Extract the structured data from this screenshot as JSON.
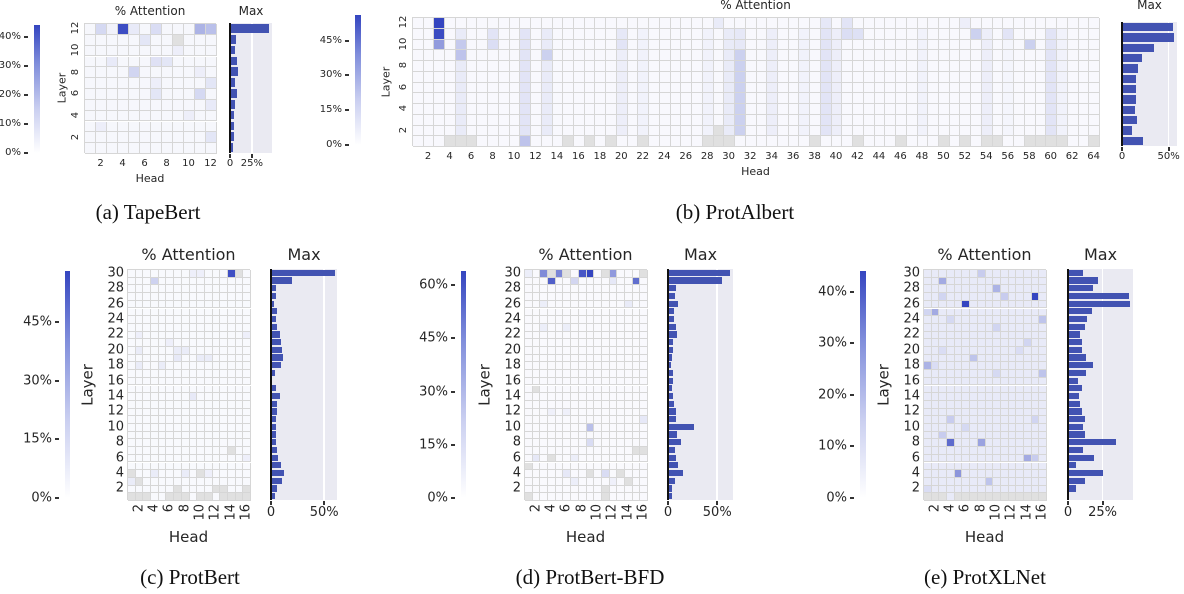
{
  "colors": {
    "heat_max": "#3445c0",
    "bar": "#4253b2",
    "nan": "#e0e0e0",
    "panel_bg": "#eaeaf2"
  },
  "chart_data": [
    {
      "type": "heatmap",
      "caption": "(a) TapeBert",
      "title": "% Attention",
      "xlabel": "Head",
      "ylabel": "Layer",
      "heads": 12,
      "layers": 12,
      "x_ticks": [
        2,
        4,
        6,
        8,
        10,
        12
      ],
      "y_ticks": [
        2,
        4,
        6,
        8,
        10,
        12
      ],
      "colorbar": {
        "vmax": 44,
        "ticks": [
          0,
          10,
          20,
          30,
          40
        ],
        "tick_labels": [
          "0%",
          "10%",
          "20%",
          "30%",
          "40%"
        ]
      },
      "baseline": 2,
      "bands": [],
      "cells": [
        [
          12,
          4,
          42
        ],
        [
          12,
          2,
          9
        ],
        [
          12,
          3,
          3
        ],
        [
          12,
          5,
          5
        ],
        [
          12,
          7,
          8
        ],
        [
          12,
          11,
          18
        ],
        [
          12,
          12,
          15
        ],
        [
          11,
          6,
          6
        ],
        [
          10,
          9,
          4
        ],
        [
          9,
          3,
          5
        ],
        [
          9,
          7,
          7
        ],
        [
          9,
          8,
          6
        ],
        [
          8,
          5,
          10
        ],
        [
          8,
          11,
          4
        ],
        [
          7,
          12,
          6
        ],
        [
          7,
          7,
          4
        ],
        [
          6,
          7,
          6
        ],
        [
          6,
          11,
          9
        ],
        [
          5,
          12,
          5
        ],
        [
          4,
          10,
          4
        ],
        [
          3,
          2,
          4
        ],
        [
          2,
          12,
          6
        ]
      ],
      "nan_cells": [
        [
          11,
          9
        ]
      ],
      "max_panel": {
        "title": "Max",
        "values": [
          3,
          5,
          4,
          4,
          6,
          8,
          6,
          9,
          8,
          6,
          7,
          45
        ],
        "xlim": [
          0,
          48
        ],
        "x_ticks": [
          0,
          25
        ],
        "x_tick_labels": [
          "0",
          "25%"
        ]
      }
    },
    {
      "type": "heatmap",
      "caption": "(b) ProtAlbert",
      "title": "% Attention",
      "xlabel": "Head",
      "ylabel": "Layer",
      "heads": 64,
      "layers": 12,
      "x_ticks": [
        2,
        4,
        6,
        8,
        10,
        12,
        14,
        16,
        18,
        20,
        22,
        24,
        26,
        28,
        30,
        32,
        34,
        36,
        38,
        40,
        42,
        44,
        46,
        48,
        50,
        52,
        54,
        56,
        58,
        60,
        62,
        64
      ],
      "y_ticks": [
        2,
        4,
        6,
        8,
        10,
        12
      ],
      "colorbar": {
        "vmax": 56,
        "ticks": [
          0,
          15,
          30,
          45
        ],
        "tick_labels": [
          "0%",
          "15%",
          "30%",
          "45%"
        ]
      },
      "baseline": 2,
      "bands": [
        [
          5,
          2,
          11,
          6
        ],
        [
          11,
          2,
          11,
          8
        ],
        [
          13,
          2,
          11,
          6
        ],
        [
          20,
          2,
          11,
          5
        ],
        [
          22,
          2,
          11,
          4
        ],
        [
          28,
          2,
          11,
          4
        ],
        [
          30,
          2,
          11,
          6
        ],
        [
          31,
          2,
          9,
          14
        ],
        [
          31,
          10,
          11,
          7
        ],
        [
          34,
          2,
          11,
          5
        ],
        [
          37,
          2,
          11,
          4
        ],
        [
          39,
          2,
          11,
          8
        ],
        [
          40,
          2,
          11,
          5
        ],
        [
          48,
          2,
          11,
          4
        ],
        [
          54,
          2,
          11,
          5
        ],
        [
          56,
          2,
          11,
          3
        ],
        [
          60,
          2,
          11,
          8
        ],
        [
          61,
          2,
          11,
          4
        ]
      ],
      "cells": [
        [
          12,
          3,
          56
        ],
        [
          11,
          3,
          54
        ],
        [
          10,
          3,
          30
        ],
        [
          10,
          5,
          16
        ],
        [
          9,
          5,
          18
        ],
        [
          11,
          8,
          8
        ],
        [
          10,
          8,
          10
        ],
        [
          9,
          13,
          14
        ],
        [
          1,
          11,
          18
        ],
        [
          11,
          20,
          7
        ],
        [
          10,
          20,
          8
        ],
        [
          12,
          41,
          8
        ],
        [
          11,
          41,
          10
        ],
        [
          11,
          42,
          9
        ],
        [
          11,
          53,
          14
        ],
        [
          11,
          56,
          8
        ],
        [
          10,
          58,
          14
        ],
        [
          12,
          39,
          7
        ],
        [
          12,
          52,
          5
        ],
        [
          12,
          29,
          6
        ]
      ],
      "nan_cells": [
        [
          1,
          4
        ],
        [
          1,
          5
        ],
        [
          1,
          6
        ],
        [
          1,
          15
        ],
        [
          1,
          17
        ],
        [
          1,
          19
        ],
        [
          1,
          22
        ],
        [
          1,
          28
        ],
        [
          1,
          29
        ],
        [
          1,
          30
        ],
        [
          1,
          38
        ],
        [
          1,
          42
        ],
        [
          1,
          46
        ],
        [
          1,
          50
        ],
        [
          1,
          52
        ],
        [
          1,
          54
        ],
        [
          1,
          55
        ],
        [
          1,
          58
        ],
        [
          1,
          59
        ],
        [
          1,
          60
        ],
        [
          1,
          61
        ],
        [
          1,
          64
        ],
        [
          2,
          29
        ]
      ],
      "max_panel": {
        "title": "Max",
        "values": [
          23,
          11,
          16,
          14,
          15,
          15,
          15,
          17,
          21,
          34,
          56,
          55
        ],
        "xlim": [
          0,
          59
        ],
        "x_ticks": [
          0,
          50
        ],
        "x_tick_labels": [
          "0",
          "50%"
        ]
      }
    },
    {
      "type": "heatmap",
      "caption": "(c) ProtBert",
      "title": "% Attention",
      "xlabel": "Head",
      "ylabel": "Layer",
      "heads": 16,
      "layers": 30,
      "x_ticks": [
        2,
        4,
        6,
        8,
        10,
        12,
        14,
        16
      ],
      "y_ticks": [
        2,
        4,
        6,
        8,
        10,
        12,
        14,
        16,
        18,
        20,
        22,
        24,
        26,
        28,
        30
      ],
      "colorbar": {
        "vmax": 58,
        "ticks": [
          0,
          15,
          30,
          45
        ],
        "tick_labels": [
          "0%",
          "15%",
          "30%",
          "45%"
        ]
      },
      "baseline": 2,
      "bands": [],
      "cells": [
        [
          30,
          14,
          55
        ],
        [
          30,
          9,
          5
        ],
        [
          30,
          10,
          5
        ],
        [
          29,
          4,
          14
        ],
        [
          22,
          2,
          5
        ],
        [
          22,
          16,
          5
        ],
        [
          21,
          6,
          5
        ],
        [
          20,
          2,
          6
        ],
        [
          20,
          7,
          6
        ],
        [
          20,
          8,
          6
        ],
        [
          19,
          7,
          7
        ],
        [
          19,
          10,
          6
        ],
        [
          19,
          11,
          6
        ],
        [
          18,
          2,
          6
        ],
        [
          18,
          5,
          6
        ],
        [
          14,
          9,
          7
        ],
        [
          4,
          4,
          6
        ],
        [
          4,
          8,
          6
        ],
        [
          4,
          11,
          5
        ],
        [
          3,
          1,
          6
        ],
        [
          6,
          16,
          5
        ]
      ],
      "nan_cells": [
        [
          30,
          15
        ],
        [
          7,
          14
        ],
        [
          4,
          1
        ],
        [
          4,
          10
        ],
        [
          3,
          2
        ],
        [
          2,
          7
        ],
        [
          2,
          12
        ],
        [
          2,
          13
        ],
        [
          2,
          16
        ],
        [
          1,
          1
        ],
        [
          1,
          2
        ],
        [
          1,
          3
        ],
        [
          1,
          6
        ],
        [
          1,
          7
        ],
        [
          1,
          8
        ],
        [
          1,
          10
        ],
        [
          1,
          11
        ],
        [
          1,
          13
        ],
        [
          1,
          14
        ],
        [
          1,
          15
        ],
        [
          1,
          16
        ]
      ],
      "max_panel": {
        "title": "Max",
        "values": [
          4,
          6,
          10,
          12,
          9,
          7,
          6,
          5,
          5,
          5,
          5,
          6,
          6,
          8,
          5,
          1,
          4,
          9,
          11,
          10,
          9,
          8,
          6,
          5,
          6,
          3,
          5,
          5,
          20,
          60
        ],
        "xlim": [
          0,
          62
        ],
        "x_ticks": [
          0,
          50
        ],
        "x_tick_labels": [
          "0",
          "50%"
        ]
      }
    },
    {
      "type": "heatmap",
      "caption": "(d) ProtBert-BFD",
      "title": "% Attention",
      "xlabel": "Head",
      "ylabel": "Layer",
      "heads": 16,
      "layers": 30,
      "x_ticks": [
        2,
        4,
        6,
        8,
        10,
        12,
        14,
        16
      ],
      "y_ticks": [
        2,
        4,
        6,
        8,
        10,
        12,
        14,
        16,
        18,
        20,
        22,
        24,
        26,
        28,
        30
      ],
      "colorbar": {
        "vmax": 64,
        "ticks": [
          0,
          15,
          30,
          45,
          60
        ],
        "tick_labels": [
          "0%",
          "15%",
          "30%",
          "45%",
          "60%"
        ]
      },
      "baseline": 2,
      "bands": [],
      "cells": [
        [
          30,
          1,
          6
        ],
        [
          30,
          3,
          40
        ],
        [
          30,
          5,
          42
        ],
        [
          30,
          8,
          58
        ],
        [
          30,
          9,
          64
        ],
        [
          30,
          12,
          35
        ],
        [
          29,
          4,
          55
        ],
        [
          29,
          7,
          14
        ],
        [
          29,
          12,
          8
        ],
        [
          29,
          15,
          50
        ],
        [
          26,
          3,
          6
        ],
        [
          26,
          14,
          7
        ],
        [
          23,
          3,
          6
        ],
        [
          23,
          6,
          6
        ],
        [
          12,
          4,
          5
        ],
        [
          12,
          6,
          5
        ],
        [
          11,
          16,
          8
        ],
        [
          10,
          9,
          22
        ],
        [
          8,
          9,
          12
        ],
        [
          6,
          2,
          8
        ],
        [
          6,
          7,
          6
        ],
        [
          4,
          6,
          8
        ],
        [
          4,
          11,
          12
        ],
        [
          3,
          7,
          6
        ],
        [
          3,
          12,
          5
        ]
      ],
      "nan_cells": [
        [
          30,
          4
        ],
        [
          30,
          6
        ],
        [
          30,
          11
        ],
        [
          30,
          16
        ],
        [
          15,
          2
        ],
        [
          7,
          15
        ],
        [
          7,
          16
        ],
        [
          6,
          4
        ],
        [
          5,
          1
        ],
        [
          4,
          9
        ],
        [
          4,
          13
        ],
        [
          3,
          14
        ],
        [
          2,
          11
        ],
        [
          1,
          1
        ],
        [
          1,
          11
        ]
      ],
      "max_panel": {
        "title": "Max",
        "values": [
          4,
          4,
          7,
          15,
          10,
          8,
          7,
          13,
          9,
          26,
          8,
          8,
          6,
          5,
          4,
          5,
          5,
          3,
          4,
          5,
          5,
          9,
          8,
          6,
          6,
          10,
          7,
          8,
          55,
          63
        ],
        "xlim": [
          0,
          66
        ],
        "x_ticks": [
          0,
          50
        ],
        "x_tick_labels": [
          "0",
          "50%"
        ]
      }
    },
    {
      "type": "heatmap",
      "caption": "(e) ProtXLNet",
      "title": "% Attention",
      "xlabel": "Head",
      "ylabel": "Layer",
      "heads": 16,
      "layers": 30,
      "x_ticks": [
        2,
        4,
        6,
        8,
        10,
        12,
        14,
        16
      ],
      "y_ticks": [
        2,
        4,
        6,
        8,
        10,
        12,
        14,
        16,
        18,
        20,
        22,
        24,
        26,
        28,
        30
      ],
      "colorbar": {
        "vmax": 44,
        "ticks": [
          0,
          10,
          20,
          30,
          40
        ],
        "tick_labels": [
          "0%",
          "10%",
          "20%",
          "30%",
          "40%"
        ]
      },
      "baseline": 5,
      "bands": [],
      "cells": [
        [
          26,
          6,
          44
        ],
        [
          27,
          15,
          44
        ],
        [
          8,
          4,
          35
        ],
        [
          8,
          8,
          22
        ],
        [
          4,
          5,
          25
        ],
        [
          6,
          14,
          20
        ],
        [
          6,
          15,
          12
        ],
        [
          29,
          3,
          20
        ],
        [
          28,
          10,
          18
        ],
        [
          27,
          11,
          12
        ],
        [
          27,
          3,
          10
        ],
        [
          25,
          2,
          20
        ],
        [
          25,
          1,
          10
        ],
        [
          24,
          16,
          14
        ],
        [
          24,
          4,
          9
        ],
        [
          23,
          10,
          10
        ],
        [
          19,
          7,
          14
        ],
        [
          18,
          1,
          18
        ],
        [
          18,
          2,
          8
        ],
        [
          17,
          16,
          14
        ],
        [
          17,
          10,
          9
        ],
        [
          11,
          4,
          12
        ],
        [
          11,
          15,
          10
        ],
        [
          10,
          6,
          9
        ],
        [
          9,
          3,
          12
        ],
        [
          3,
          9,
          14
        ],
        [
          30,
          8,
          12
        ],
        [
          2,
          1,
          8
        ],
        [
          21,
          14,
          10
        ],
        [
          20,
          3,
          8
        ],
        [
          20,
          13,
          8
        ]
      ],
      "nan_cells": [
        [
          1,
          1
        ],
        [
          1,
          2
        ],
        [
          1,
          3
        ],
        [
          1,
          5
        ],
        [
          1,
          6
        ],
        [
          1,
          7
        ],
        [
          1,
          8
        ],
        [
          1,
          9
        ],
        [
          1,
          10
        ],
        [
          1,
          11
        ],
        [
          1,
          12
        ],
        [
          1,
          13
        ],
        [
          1,
          14
        ],
        [
          1,
          15
        ],
        [
          1,
          16
        ]
      ],
      "max_panel": {
        "title": "Max",
        "values": [
          0,
          6,
          12,
          25,
          6,
          19,
          11,
          35,
          12,
          11,
          12,
          10,
          9,
          8,
          10,
          7,
          13,
          18,
          13,
          10,
          10,
          9,
          12,
          14,
          17,
          45,
          44,
          18,
          22,
          11
        ],
        "xlim": [
          0,
          47
        ],
        "x_ticks": [
          0,
          25
        ],
        "x_tick_labels": [
          "0",
          "25%"
        ]
      }
    }
  ]
}
